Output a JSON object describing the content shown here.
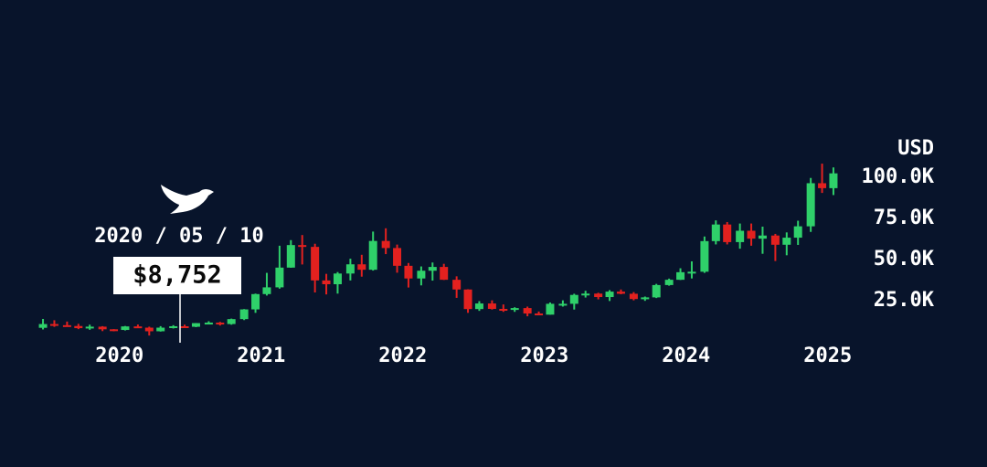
{
  "chart_data": {
    "type": "candlestick",
    "y_axis_label": "USD",
    "up_color": "#2fd06a",
    "down_color": "#e3211f",
    "xlim": [
      2019.35,
      2025.25
    ],
    "xticks": [
      2020,
      2021,
      2022,
      2023,
      2024,
      2025
    ],
    "ylim": [
      0,
      110000
    ],
    "yticks": [
      {
        "value": 25000,
        "label": "25.0K"
      },
      {
        "value": 50000,
        "label": "50.0K"
      },
      {
        "value": 75000,
        "label": "75.0K"
      },
      {
        "value": 100000,
        "label": "100.0K"
      }
    ],
    "annotation": {
      "date": "2020 / 05 / 10",
      "price": "$8,752"
    },
    "x": [
      2019.46,
      2019.54,
      2019.63,
      2019.71,
      2019.79,
      2019.88,
      2019.96,
      2020.04,
      2020.13,
      2020.21,
      2020.29,
      2020.38,
      2020.46,
      2020.54,
      2020.63,
      2020.71,
      2020.79,
      2020.88,
      2020.96,
      2021.04,
      2021.13,
      2021.21,
      2021.29,
      2021.38,
      2021.46,
      2021.54,
      2021.63,
      2021.71,
      2021.79,
      2021.88,
      2021.96,
      2022.04,
      2022.13,
      2022.21,
      2022.29,
      2022.38,
      2022.46,
      2022.54,
      2022.63,
      2022.71,
      2022.79,
      2022.88,
      2022.96,
      2023.04,
      2023.13,
      2023.21,
      2023.29,
      2023.38,
      2023.46,
      2023.54,
      2023.63,
      2023.71,
      2023.79,
      2023.88,
      2023.96,
      2024.04,
      2024.13,
      2024.21,
      2024.29,
      2024.38,
      2024.46,
      2024.54,
      2024.63,
      2024.71,
      2024.79,
      2024.88,
      2024.96,
      2025.04
    ],
    "open": [
      8500,
      10800,
      10100,
      9600,
      8300,
      9200,
      7600,
      7200,
      9350,
      8600,
      6400,
      8600,
      9450,
      9140,
      11350,
      11650,
      10800,
      13800,
      19700,
      29000,
      33100,
      45100,
      58800,
      57700,
      37300,
      35000,
      41500,
      47100,
      43800,
      61300,
      57000,
      46200,
      38500,
      43200,
      45500,
      37700,
      31800,
      19900,
      23300,
      20000,
      19400,
      20500,
      17200,
      16500,
      23100,
      23100,
      28500,
      29300,
      27200,
      30500,
      29200,
      26000,
      27000,
      34500,
      37700,
      42300,
      42600,
      61200,
      71300,
      60600,
      67500,
      62700,
      64600,
      59000,
      63300,
      70200,
      96400,
      93400
    ],
    "high": [
      13900,
      13100,
      12300,
      10900,
      10400,
      9500,
      7700,
      9600,
      10500,
      9200,
      9500,
      10100,
      10400,
      11400,
      12500,
      12100,
      14100,
      19900,
      29300,
      41900,
      58400,
      61800,
      64900,
      59600,
      41300,
      42400,
      50500,
      52900,
      67000,
      69000,
      59100,
      47900,
      45800,
      48200,
      47400,
      39800,
      31900,
      24700,
      25200,
      22700,
      21000,
      21400,
      18400,
      23900,
      25200,
      29200,
      31000,
      29800,
      31400,
      31800,
      30200,
      27500,
      35200,
      38400,
      44700,
      48900,
      64000,
      73800,
      72800,
      71900,
      71900,
      70000,
      65600,
      66500,
      73600,
      99600,
      108300,
      106000
    ],
    "low": [
      7500,
      9100,
      9400,
      7700,
      7300,
      6500,
      6400,
      6900,
      8500,
      3800,
      6200,
      8100,
      8900,
      8900,
      10600,
      9900,
      10400,
      13200,
      17600,
      28100,
      32300,
      45000,
      47000,
      30000,
      28800,
      29300,
      37300,
      39600,
      43300,
      53300,
      42000,
      33000,
      34300,
      37200,
      37600,
      26700,
      17600,
      18800,
      19600,
      18200,
      18200,
      15500,
      16300,
      16500,
      21400,
      19600,
      26900,
      25800,
      24800,
      28900,
      25200,
      24900,
      26600,
      34100,
      37600,
      38500,
      41900,
      59200,
      59200,
      56600,
      58400,
      53500,
      49100,
      52600,
      58900,
      66800,
      90500,
      89200
    ],
    "close": [
      10800,
      10100,
      9600,
      8300,
      9200,
      7600,
      7200,
      9350,
      8600,
      6400,
      8600,
      9450,
      9140,
      11350,
      11650,
      10800,
      13800,
      19700,
      29000,
      33100,
      45100,
      58800,
      57700,
      37300,
      35000,
      41500,
      47100,
      43800,
      61300,
      57000,
      46200,
      38500,
      43200,
      45500,
      37700,
      31800,
      19900,
      23300,
      20000,
      19400,
      20500,
      17200,
      16500,
      23100,
      23100,
      28500,
      29300,
      27200,
      30500,
      29200,
      26000,
      27000,
      34500,
      37700,
      42300,
      42600,
      61200,
      71300,
      60600,
      67500,
      62700,
      64600,
      59000,
      63300,
      70200,
      96400,
      93400,
      102400
    ]
  }
}
